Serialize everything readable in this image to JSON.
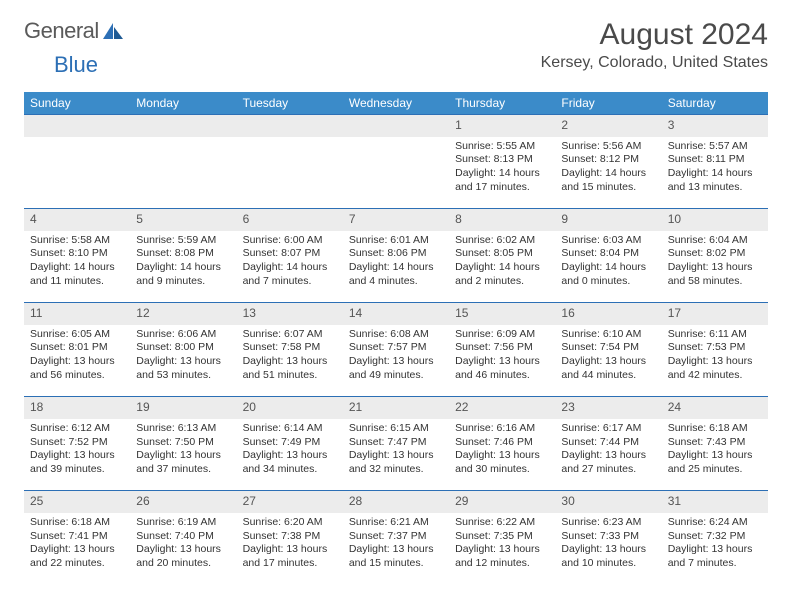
{
  "logo": {
    "text_a": "General",
    "text_b": "Blue"
  },
  "title": "August 2024",
  "location": "Kersey, Colorado, United States",
  "colors": {
    "header_bg": "#3b8bc9",
    "header_text": "#ffffff",
    "daynum_bg": "#ececec",
    "border": "#2c6fb5",
    "text": "#333333",
    "title_text": "#4a4a4a",
    "logo_gray": "#5a5a5a",
    "logo_blue": "#2c6fb5"
  },
  "day_names": [
    "Sunday",
    "Monday",
    "Tuesday",
    "Wednesday",
    "Thursday",
    "Friday",
    "Saturday"
  ],
  "weeks": [
    [
      null,
      null,
      null,
      null,
      {
        "n": "1",
        "sr": "5:55 AM",
        "ss": "8:13 PM",
        "dl": "14 hours and 17 minutes."
      },
      {
        "n": "2",
        "sr": "5:56 AM",
        "ss": "8:12 PM",
        "dl": "14 hours and 15 minutes."
      },
      {
        "n": "3",
        "sr": "5:57 AM",
        "ss": "8:11 PM",
        "dl": "14 hours and 13 minutes."
      }
    ],
    [
      {
        "n": "4",
        "sr": "5:58 AM",
        "ss": "8:10 PM",
        "dl": "14 hours and 11 minutes."
      },
      {
        "n": "5",
        "sr": "5:59 AM",
        "ss": "8:08 PM",
        "dl": "14 hours and 9 minutes."
      },
      {
        "n": "6",
        "sr": "6:00 AM",
        "ss": "8:07 PM",
        "dl": "14 hours and 7 minutes."
      },
      {
        "n": "7",
        "sr": "6:01 AM",
        "ss": "8:06 PM",
        "dl": "14 hours and 4 minutes."
      },
      {
        "n": "8",
        "sr": "6:02 AM",
        "ss": "8:05 PM",
        "dl": "14 hours and 2 minutes."
      },
      {
        "n": "9",
        "sr": "6:03 AM",
        "ss": "8:04 PM",
        "dl": "14 hours and 0 minutes."
      },
      {
        "n": "10",
        "sr": "6:04 AM",
        "ss": "8:02 PM",
        "dl": "13 hours and 58 minutes."
      }
    ],
    [
      {
        "n": "11",
        "sr": "6:05 AM",
        "ss": "8:01 PM",
        "dl": "13 hours and 56 minutes."
      },
      {
        "n": "12",
        "sr": "6:06 AM",
        "ss": "8:00 PM",
        "dl": "13 hours and 53 minutes."
      },
      {
        "n": "13",
        "sr": "6:07 AM",
        "ss": "7:58 PM",
        "dl": "13 hours and 51 minutes."
      },
      {
        "n": "14",
        "sr": "6:08 AM",
        "ss": "7:57 PM",
        "dl": "13 hours and 49 minutes."
      },
      {
        "n": "15",
        "sr": "6:09 AM",
        "ss": "7:56 PM",
        "dl": "13 hours and 46 minutes."
      },
      {
        "n": "16",
        "sr": "6:10 AM",
        "ss": "7:54 PM",
        "dl": "13 hours and 44 minutes."
      },
      {
        "n": "17",
        "sr": "6:11 AM",
        "ss": "7:53 PM",
        "dl": "13 hours and 42 minutes."
      }
    ],
    [
      {
        "n": "18",
        "sr": "6:12 AM",
        "ss": "7:52 PM",
        "dl": "13 hours and 39 minutes."
      },
      {
        "n": "19",
        "sr": "6:13 AM",
        "ss": "7:50 PM",
        "dl": "13 hours and 37 minutes."
      },
      {
        "n": "20",
        "sr": "6:14 AM",
        "ss": "7:49 PM",
        "dl": "13 hours and 34 minutes."
      },
      {
        "n": "21",
        "sr": "6:15 AM",
        "ss": "7:47 PM",
        "dl": "13 hours and 32 minutes."
      },
      {
        "n": "22",
        "sr": "6:16 AM",
        "ss": "7:46 PM",
        "dl": "13 hours and 30 minutes."
      },
      {
        "n": "23",
        "sr": "6:17 AM",
        "ss": "7:44 PM",
        "dl": "13 hours and 27 minutes."
      },
      {
        "n": "24",
        "sr": "6:18 AM",
        "ss": "7:43 PM",
        "dl": "13 hours and 25 minutes."
      }
    ],
    [
      {
        "n": "25",
        "sr": "6:18 AM",
        "ss": "7:41 PM",
        "dl": "13 hours and 22 minutes."
      },
      {
        "n": "26",
        "sr": "6:19 AM",
        "ss": "7:40 PM",
        "dl": "13 hours and 20 minutes."
      },
      {
        "n": "27",
        "sr": "6:20 AM",
        "ss": "7:38 PM",
        "dl": "13 hours and 17 minutes."
      },
      {
        "n": "28",
        "sr": "6:21 AM",
        "ss": "7:37 PM",
        "dl": "13 hours and 15 minutes."
      },
      {
        "n": "29",
        "sr": "6:22 AM",
        "ss": "7:35 PM",
        "dl": "13 hours and 12 minutes."
      },
      {
        "n": "30",
        "sr": "6:23 AM",
        "ss": "7:33 PM",
        "dl": "13 hours and 10 minutes."
      },
      {
        "n": "31",
        "sr": "6:24 AM",
        "ss": "7:32 PM",
        "dl": "13 hours and 7 minutes."
      }
    ]
  ]
}
